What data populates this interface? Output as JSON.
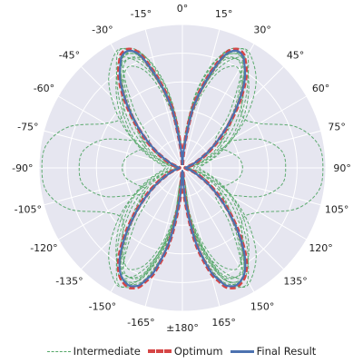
{
  "chart_data": {
    "type": "polar-line",
    "angle_zero": "top",
    "angle_direction": "clockwise",
    "grid": true,
    "background_color": "#e6e6f0",
    "angle_tick_labels": [
      "0°",
      "15°",
      "30°",
      "45°",
      "60°",
      "75°",
      "90°",
      "105°",
      "120°",
      "135°",
      "150°",
      "165°",
      "±180°",
      "-165°",
      "-150°",
      "-135°",
      "-120°",
      "-105°",
      "-90°",
      "-75°",
      "-60°",
      "-45°",
      "-30°",
      "-15°"
    ],
    "radial_ticks_shown": false,
    "radial_grid_values": [
      0.2,
      0.4,
      0.6,
      0.8,
      1.0
    ],
    "legend": {
      "placement": "bottom-center",
      "entries": [
        {
          "label": "Intermediate",
          "color": "#55a868",
          "style": "dashed"
        },
        {
          "label": "Optimum",
          "color": "#d64545",
          "style": "dashed-thick"
        },
        {
          "label": "Final Result",
          "color": "#4c72b0",
          "style": "solid"
        }
      ]
    },
    "series": [
      {
        "name": "Final Result",
        "color": "#4c72b0",
        "symmetric_about_axis": "0°/180°",
        "angles_deg": [
          0,
          5,
          10,
          15,
          18,
          20,
          22,
          25,
          28,
          30,
          35,
          40,
          45,
          50,
          55,
          60,
          70,
          80,
          90,
          100,
          110,
          120,
          125,
          130,
          135,
          140,
          145,
          150,
          155,
          158,
          160,
          162,
          165,
          170,
          175,
          180
        ],
        "r": [
          0.02,
          0.15,
          0.42,
          0.62,
          0.74,
          0.82,
          0.87,
          0.9,
          0.89,
          0.86,
          0.76,
          0.62,
          0.48,
          0.36,
          0.26,
          0.18,
          0.08,
          0.03,
          0.02,
          0.03,
          0.08,
          0.18,
          0.26,
          0.36,
          0.48,
          0.62,
          0.76,
          0.86,
          0.9,
          0.89,
          0.87,
          0.82,
          0.74,
          0.52,
          0.22,
          0.02
        ]
      },
      {
        "name": "Optimum",
        "color": "#d64545",
        "symmetric_about_axis": "0°/180°",
        "angles_deg": [
          0,
          5,
          10,
          15,
          18,
          20,
          22,
          25,
          28,
          30,
          35,
          40,
          45,
          50,
          55,
          60,
          70,
          80,
          90,
          100,
          110,
          120,
          125,
          130,
          135,
          140,
          145,
          150,
          155,
          158,
          160,
          162,
          165,
          170,
          175,
          180
        ],
        "r": [
          0.02,
          0.16,
          0.43,
          0.63,
          0.75,
          0.83,
          0.88,
          0.91,
          0.9,
          0.87,
          0.77,
          0.63,
          0.49,
          0.37,
          0.27,
          0.19,
          0.09,
          0.03,
          0.02,
          0.03,
          0.09,
          0.19,
          0.27,
          0.37,
          0.49,
          0.63,
          0.77,
          0.87,
          0.91,
          0.9,
          0.88,
          0.83,
          0.75,
          0.53,
          0.23,
          0.02
        ]
      },
      {
        "name": "Intermediate",
        "color": "#55a868",
        "symmetric_about_axis": "0°/180°",
        "traces": [
          {
            "angles_deg": [
              0,
              10,
              20,
              30,
              40,
              50,
              60,
              70,
              80,
              90,
              100,
              110,
              120,
              130,
              140,
              150,
              160,
              170,
              180
            ],
            "r": [
              0.05,
              0.4,
              0.78,
              0.84,
              0.65,
              0.55,
              0.62,
              0.84,
              0.96,
              0.98,
              0.96,
              0.84,
              0.62,
              0.55,
              0.65,
              0.84,
              0.78,
              0.4,
              0.05
            ]
          },
          {
            "angles_deg": [
              0,
              10,
              20,
              30,
              40,
              50,
              60,
              70,
              80,
              90,
              100,
              110,
              120,
              130,
              140,
              150,
              160,
              170,
              180
            ],
            "r": [
              0.05,
              0.45,
              0.8,
              0.82,
              0.52,
              0.3,
              0.38,
              0.58,
              0.7,
              0.72,
              0.7,
              0.58,
              0.38,
              0.3,
              0.52,
              0.82,
              0.8,
              0.45,
              0.05
            ]
          },
          {
            "angles_deg": [
              0,
              10,
              20,
              30,
              40,
              50,
              60,
              70,
              80,
              90,
              100,
              110,
              120,
              130,
              140,
              150,
              160,
              170,
              180
            ],
            "r": [
              0.05,
              0.44,
              0.82,
              0.86,
              0.6,
              0.4,
              0.3,
              0.34,
              0.4,
              0.42,
              0.4,
              0.34,
              0.3,
              0.4,
              0.6,
              0.86,
              0.82,
              0.44,
              0.05
            ]
          },
          {
            "angles_deg": [
              0,
              5,
              10,
              15,
              20,
              25,
              30,
              40,
              50,
              60,
              70,
              80,
              90,
              100,
              110,
              120,
              130,
              140,
              150,
              155,
              160,
              165,
              170,
              175,
              180
            ],
            "r": [
              0.03,
              0.22,
              0.5,
              0.7,
              0.86,
              0.92,
              0.91,
              0.7,
              0.52,
              0.38,
              0.24,
              0.14,
              0.1,
              0.14,
              0.24,
              0.38,
              0.52,
              0.7,
              0.91,
              0.92,
              0.86,
              0.7,
              0.5,
              0.22,
              0.03
            ]
          },
          {
            "angles_deg": [
              0,
              5,
              10,
              15,
              20,
              25,
              30,
              40,
              50,
              60,
              70,
              80,
              90,
              100,
              110,
              120,
              130,
              140,
              150,
              155,
              160,
              165,
              170,
              175,
              180
            ],
            "r": [
              0.03,
              0.14,
              0.36,
              0.54,
              0.7,
              0.78,
              0.79,
              0.66,
              0.48,
              0.32,
              0.18,
              0.08,
              0.05,
              0.08,
              0.18,
              0.32,
              0.48,
              0.66,
              0.79,
              0.78,
              0.7,
              0.54,
              0.36,
              0.14,
              0.03
            ]
          },
          {
            "angles_deg": [
              0,
              5,
              10,
              15,
              20,
              25,
              30,
              40,
              50,
              60,
              70,
              80,
              90,
              100,
              110,
              120,
              130,
              140,
              150,
              155,
              160,
              165,
              170,
              175,
              180
            ],
            "r": [
              0.03,
              0.18,
              0.46,
              0.66,
              0.82,
              0.88,
              0.88,
              0.72,
              0.56,
              0.4,
              0.26,
              0.16,
              0.12,
              0.16,
              0.26,
              0.4,
              0.56,
              0.72,
              0.88,
              0.88,
              0.82,
              0.66,
              0.46,
              0.18,
              0.03
            ]
          },
          {
            "angles_deg": [
              0,
              5,
              10,
              15,
              20,
              25,
              30,
              40,
              50,
              60,
              70,
              80,
              90,
              100,
              110,
              120,
              130,
              140,
              150,
              155,
              160,
              165,
              170,
              175,
              180
            ],
            "r": [
              0.03,
              0.2,
              0.4,
              0.6,
              0.8,
              0.91,
              0.93,
              0.8,
              0.6,
              0.4,
              0.2,
              0.1,
              0.08,
              0.1,
              0.2,
              0.4,
              0.6,
              0.8,
              0.93,
              0.91,
              0.8,
              0.6,
              0.4,
              0.2,
              0.03
            ]
          },
          {
            "angles_deg": [
              0,
              5,
              10,
              15,
              20,
              25,
              30,
              40,
              50,
              60,
              70,
              80,
              90,
              100,
              110,
              120,
              130,
              140,
              150,
              155,
              160,
              165,
              170,
              175,
              180
            ],
            "r": [
              0.03,
              0.14,
              0.42,
              0.6,
              0.74,
              0.84,
              0.86,
              0.62,
              0.42,
              0.28,
              0.16,
              0.07,
              0.04,
              0.07,
              0.16,
              0.28,
              0.42,
              0.62,
              0.86,
              0.84,
              0.74,
              0.6,
              0.42,
              0.14,
              0.03
            ]
          },
          {
            "angles_deg": [
              0,
              5,
              10,
              15,
              20,
              25,
              30,
              40,
              50,
              60,
              70,
              80,
              90,
              100,
              110,
              120,
              130,
              140,
              150,
              155,
              160,
              165,
              170,
              175,
              180
            ],
            "r": [
              0.03,
              0.26,
              0.52,
              0.72,
              0.85,
              0.89,
              0.84,
              0.58,
              0.36,
              0.22,
              0.12,
              0.06,
              0.04,
              0.06,
              0.12,
              0.22,
              0.36,
              0.58,
              0.84,
              0.89,
              0.85,
              0.72,
              0.52,
              0.26,
              0.03
            ]
          }
        ]
      }
    ]
  }
}
